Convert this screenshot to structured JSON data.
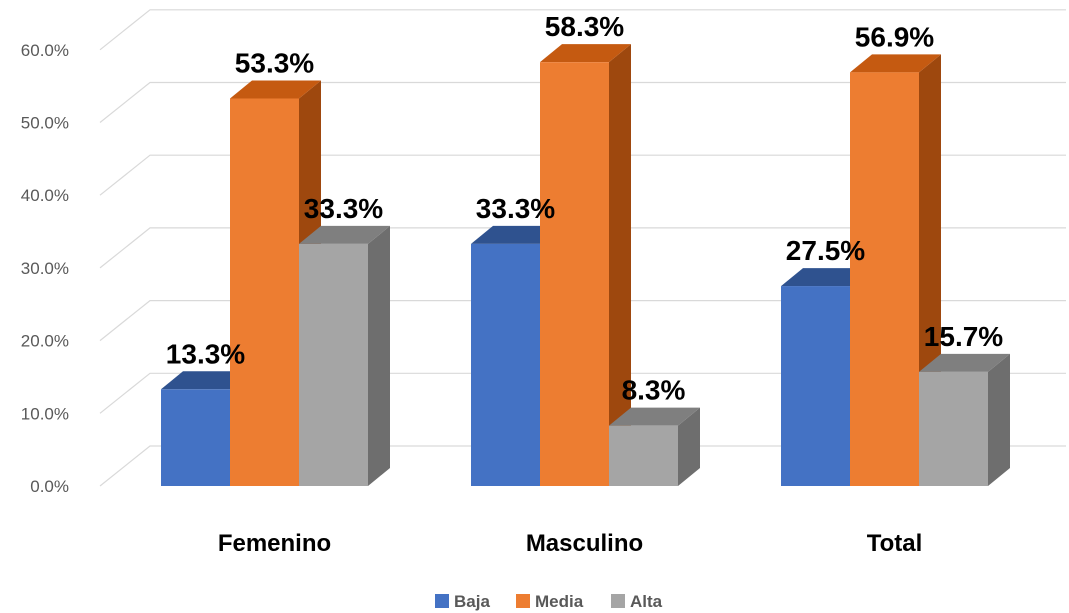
{
  "chart_data": {
    "type": "bar",
    "categories": [
      "Femenino",
      "Masculino",
      "Total"
    ],
    "series": [
      {
        "name": "Baja",
        "values": [
          13.3,
          33.3,
          27.5
        ],
        "labels": [
          "13.3%",
          "33.3%",
          "27.5%"
        ]
      },
      {
        "name": "Media",
        "values": [
          53.3,
          58.3,
          56.9
        ],
        "labels": [
          "53.3%",
          "58.3%",
          "56.9%"
        ]
      },
      {
        "name": "Alta",
        "values": [
          33.3,
          8.3,
          15.7
        ],
        "labels": [
          "33.3%",
          "8.3%",
          "15.7%"
        ]
      }
    ],
    "yticks": [
      "0.0%",
      "10.0%",
      "20.0%",
      "30.0%",
      "40.0%",
      "50.0%",
      "60.0%"
    ],
    "ylim": [
      0,
      65
    ],
    "grid": true,
    "legend": "bottom",
    "colors": {
      "Baja": {
        "front": "#4472c4",
        "top": "#2f528f",
        "side": "#2f528f"
      },
      "Media": {
        "front": "#ed7d31",
        "top": "#c55a11",
        "side": "#9e480e"
      },
      "Alta": {
        "front": "#a5a5a5",
        "top": "#7f7f7f",
        "side": "#6e6e6e"
      }
    }
  }
}
